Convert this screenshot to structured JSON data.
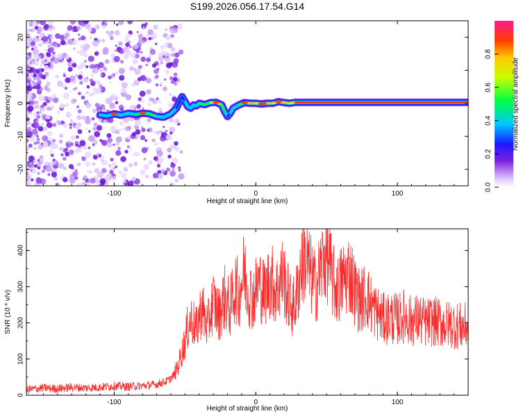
{
  "title": "S199.2026.056.17.54.G14",
  "chart_data": [
    {
      "type": "heatmap",
      "xlabel": "Height of straight line (km)",
      "ylabel": "Frequency (Hz)",
      "xlim": [
        -162,
        150
      ],
      "ylim": [
        -25,
        25
      ],
      "xticks": [
        -100,
        0,
        100
      ],
      "yticks": [
        -20,
        -10,
        0,
        10,
        20
      ],
      "ridge": {
        "x": [
          -110,
          -105,
          -100,
          -95,
          -90,
          -85,
          -80,
          -75,
          -70,
          -65,
          -60,
          -56,
          -54,
          -52,
          -50,
          -48,
          -46,
          -44,
          -42,
          -40,
          -36,
          -32,
          -28,
          -24,
          -22,
          -20,
          -18,
          -16,
          -12,
          -8,
          -4,
          0,
          4,
          8,
          12,
          16,
          20,
          24,
          28,
          150
        ],
        "freq": [
          -3.5,
          -3.8,
          -3.2,
          -3.6,
          -3.0,
          -3.4,
          -3.0,
          -3.2,
          -4.0,
          -4.2,
          -3.2,
          -1.5,
          0.5,
          2.0,
          0.5,
          -1.0,
          -1.5,
          -0.5,
          -0.8,
          0.0,
          -0.4,
          0.2,
          0.3,
          -0.5,
          -2.5,
          -4.0,
          -3.0,
          -1.5,
          -0.5,
          0.2,
          0.0,
          0.0,
          -0.2,
          0.0,
          0.0,
          0.5,
          0.2,
          0.0,
          0.3,
          0.3
        ],
        "amplitude": [
          0.35,
          0.42,
          0.45,
          0.4,
          0.48,
          0.5,
          0.55,
          0.5,
          0.45,
          0.4,
          0.45,
          0.3,
          0.25,
          0.3,
          0.35,
          0.4,
          0.35,
          0.4,
          0.45,
          0.5,
          0.55,
          0.65,
          0.8,
          0.6,
          0.35,
          0.3,
          0.35,
          0.45,
          0.55,
          0.8,
          0.85,
          0.75,
          0.9,
          0.85,
          0.7,
          0.85,
          0.8,
          0.75,
          0.95,
          0.95
        ]
      },
      "colorbar": {
        "label": "Normalized spectral amplitude",
        "ticks": [
          "0.0",
          "0.2",
          "0.4",
          "0.6",
          "0.8"
        ],
        "range": [
          0,
          1
        ]
      }
    },
    {
      "type": "line",
      "xlabel": "Height of straight line (km)",
      "ylabel": "SNR (10 * v/v)",
      "xlim": [
        -162,
        150
      ],
      "ylim": [
        0,
        460
      ],
      "xticks": [
        -100,
        0,
        100
      ],
      "yticks": [
        0,
        100,
        200,
        300,
        400
      ],
      "series": [
        {
          "name": "SNR",
          "color": "#ff2b2b",
          "x": [
            -162,
            -150,
            -140,
            -130,
            -120,
            -110,
            -100,
            -90,
            -80,
            -75,
            -70,
            -66,
            -62,
            -58,
            -55,
            -52,
            -50,
            -48,
            -46,
            -44,
            -42,
            -40,
            -38,
            -36,
            -34,
            -32,
            -30,
            -28,
            -26,
            -24,
            -22,
            -20,
            -18,
            -16,
            -14,
            -12,
            -10,
            -8,
            -6,
            -4,
            -2,
            0,
            2,
            4,
            6,
            8,
            10,
            12,
            14,
            16,
            18,
            20,
            22,
            24,
            26,
            28,
            30,
            32,
            34,
            36,
            38,
            40,
            42,
            44,
            46,
            48,
            50,
            52,
            54,
            56,
            58,
            60,
            62,
            64,
            66,
            68,
            70,
            72,
            74,
            76,
            78,
            80,
            85,
            90,
            95,
            100,
            105,
            110,
            115,
            120,
            125,
            130,
            135,
            140,
            145,
            150
          ],
          "y": [
            15,
            20,
            18,
            22,
            20,
            22,
            25,
            24,
            26,
            28,
            30,
            35,
            40,
            55,
            80,
            120,
            150,
            190,
            210,
            200,
            180,
            220,
            240,
            210,
            190,
            230,
            260,
            240,
            220,
            250,
            270,
            250,
            240,
            280,
            300,
            270,
            320,
            340,
            300,
            280,
            270,
            290,
            310,
            300,
            280,
            300,
            320,
            310,
            290,
            300,
            330,
            320,
            280,
            260,
            240,
            260,
            300,
            360,
            380,
            370,
            340,
            320,
            300,
            320,
            350,
            380,
            390,
            360,
            320,
            300,
            290,
            310,
            320,
            330,
            340,
            320,
            290,
            270,
            260,
            270,
            280,
            260,
            230,
            210,
            215,
            210,
            220,
            205,
            210,
            200,
            205,
            200,
            195,
            195,
            190,
            190
          ]
        }
      ]
    }
  ]
}
